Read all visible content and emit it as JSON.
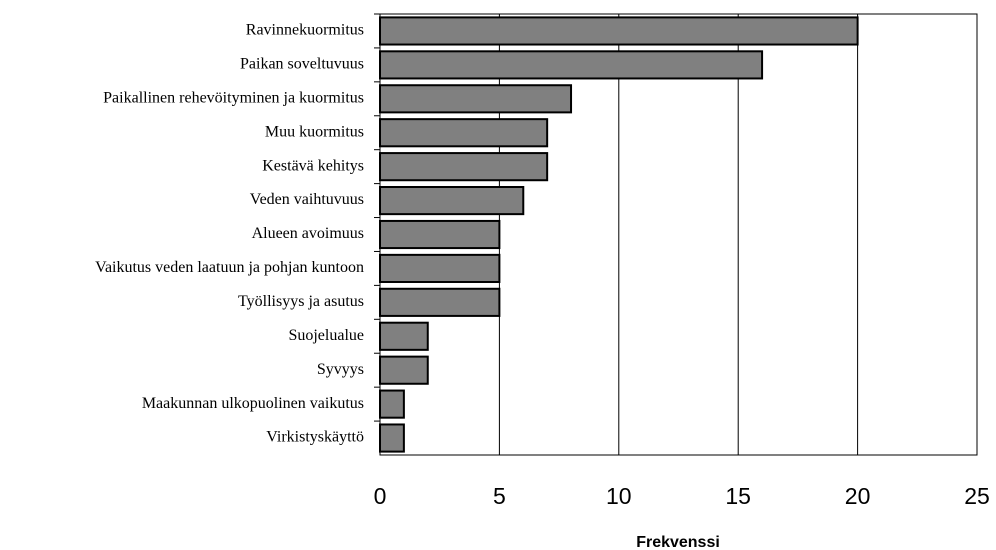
{
  "chart_data": {
    "type": "bar",
    "orientation": "horizontal",
    "categories": [
      "Ravinnekuormitus",
      "Paikan soveltuvuus",
      "Paikallinen rehevöityminen ja kuormitus",
      "Muu kuormitus",
      "Kestävä kehitys",
      "Veden vaihtuvuus",
      "Alueen avoimuus",
      "Vaikutus veden laatuun ja pohjan kuntoon",
      "Työllisyys ja asutus",
      "Suojelualue",
      "Syvyys",
      "Maakunnan ulkopuolinen vaikutus",
      "Virkistyskäyttö"
    ],
    "values": [
      20,
      16,
      8,
      7,
      7,
      6,
      5,
      5,
      5,
      2,
      2,
      1,
      1
    ],
    "color": "#808080",
    "xlabel": "Frekvenssi",
    "xlim": [
      0,
      25
    ],
    "xticks": [
      0,
      5,
      10,
      15,
      20,
      25
    ],
    "grid": true
  }
}
